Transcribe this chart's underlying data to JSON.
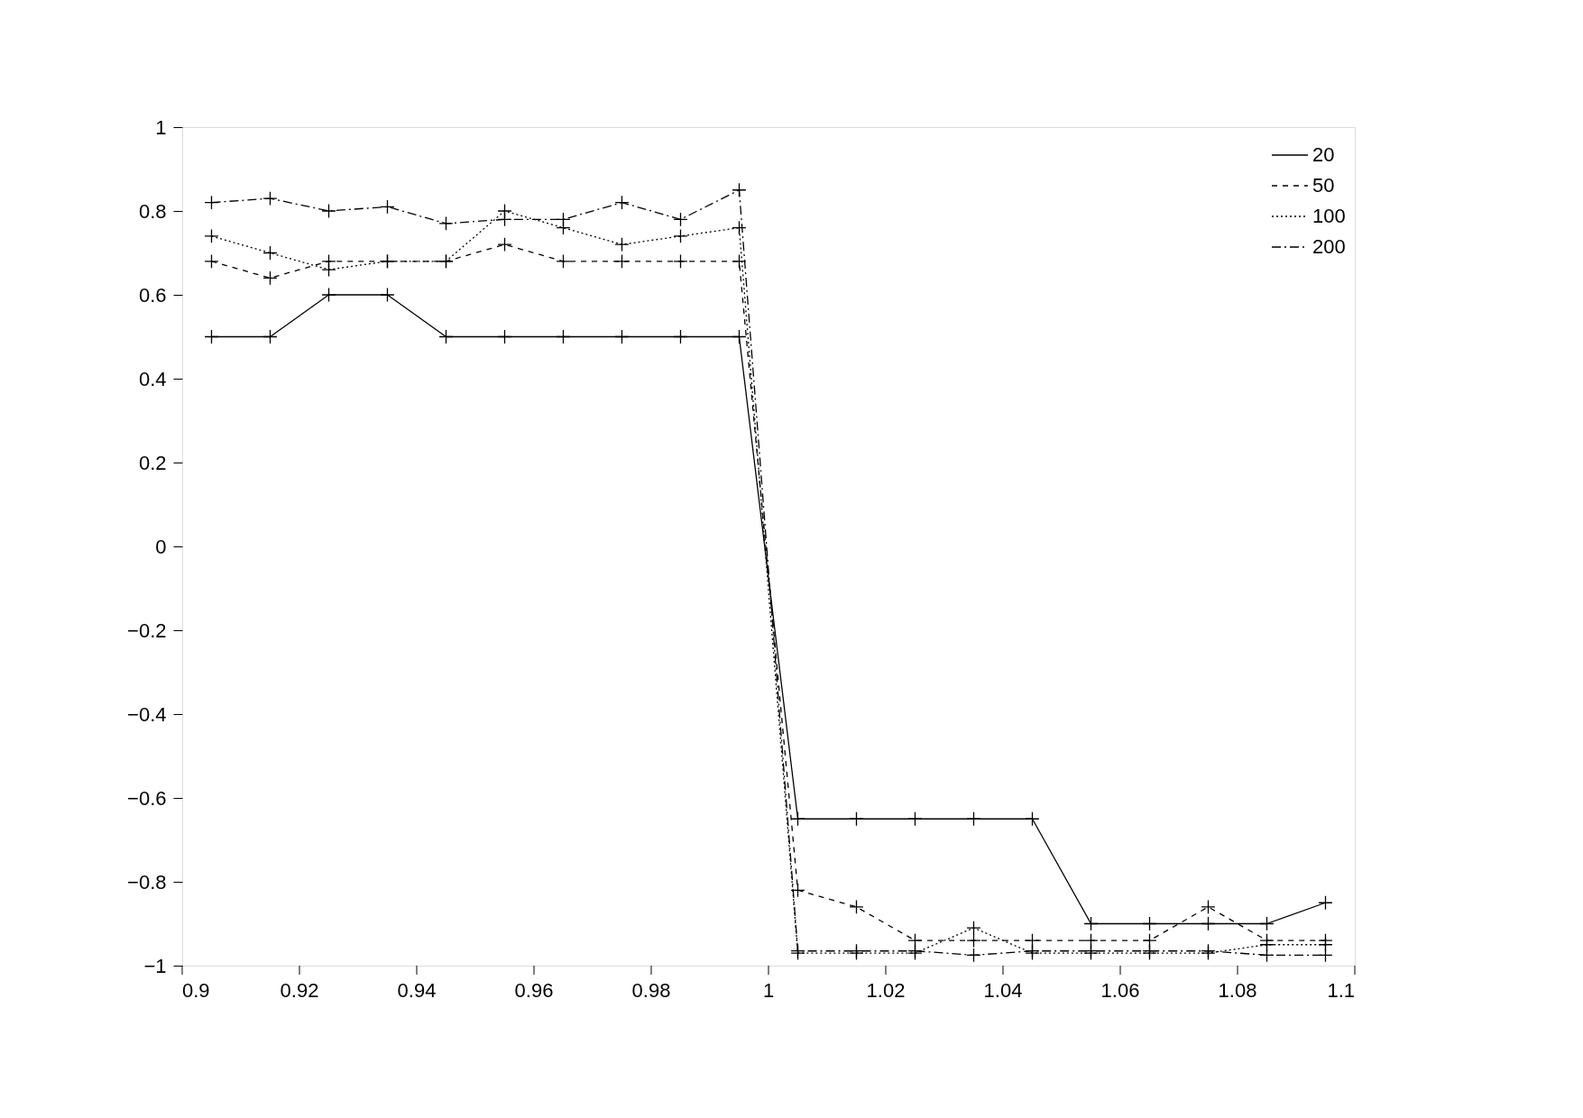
{
  "chart_data": {
    "type": "line",
    "x": [
      0.905,
      0.915,
      0.925,
      0.935,
      0.945,
      0.955,
      0.965,
      0.975,
      0.985,
      0.995,
      1.005,
      1.015,
      1.025,
      1.035,
      1.045,
      1.055,
      1.065,
      1.075,
      1.085,
      1.095
    ],
    "series": [
      {
        "name": "20",
        "color": "#000000",
        "line_style": "solid",
        "values": [
          0.5,
          0.5,
          0.6,
          0.6,
          0.5,
          0.5,
          0.5,
          0.5,
          0.5,
          0.5,
          -0.65,
          -0.65,
          -0.65,
          -0.65,
          -0.65,
          -0.9,
          -0.9,
          -0.9,
          -0.9,
          -0.85
        ]
      },
      {
        "name": "50",
        "color": "#000000",
        "line_style": "dashed",
        "values": [
          0.68,
          0.64,
          0.68,
          0.68,
          0.68,
          0.72,
          0.68,
          0.68,
          0.68,
          0.68,
          -0.82,
          -0.86,
          -0.94,
          -0.94,
          -0.94,
          -0.94,
          -0.94,
          -0.86,
          -0.94,
          -0.94
        ]
      },
      {
        "name": "100",
        "color": "#000000",
        "line_style": "dotted",
        "values": [
          0.74,
          0.7,
          0.66,
          0.68,
          0.68,
          0.8,
          0.76,
          0.72,
          0.74,
          0.76,
          -0.97,
          -0.97,
          -0.97,
          -0.91,
          -0.97,
          -0.97,
          -0.97,
          -0.97,
          -0.95,
          -0.95
        ]
      },
      {
        "name": "200",
        "color": "#000000",
        "line_style": "dashdot",
        "values": [
          0.82,
          0.83,
          0.8,
          0.81,
          0.77,
          0.78,
          0.78,
          0.82,
          0.78,
          0.85,
          -0.965,
          -0.965,
          -0.965,
          -0.975,
          -0.965,
          -0.965,
          -0.965,
          -0.965,
          -0.975,
          -0.975
        ]
      }
    ],
    "xlim": [
      0.9,
      1.1
    ],
    "xticks": [
      0.9,
      0.92,
      0.94,
      0.96,
      0.98,
      1,
      1.02,
      1.04,
      1.06,
      1.08,
      1.1
    ],
    "ylim": [
      -1,
      1
    ],
    "yticks": [
      -1,
      -0.8,
      -0.6,
      -0.4,
      -0.2,
      0,
      0.2,
      0.4,
      0.6,
      0.8,
      1
    ],
    "marker": "cross",
    "legend": "top right",
    "grid": false
  }
}
